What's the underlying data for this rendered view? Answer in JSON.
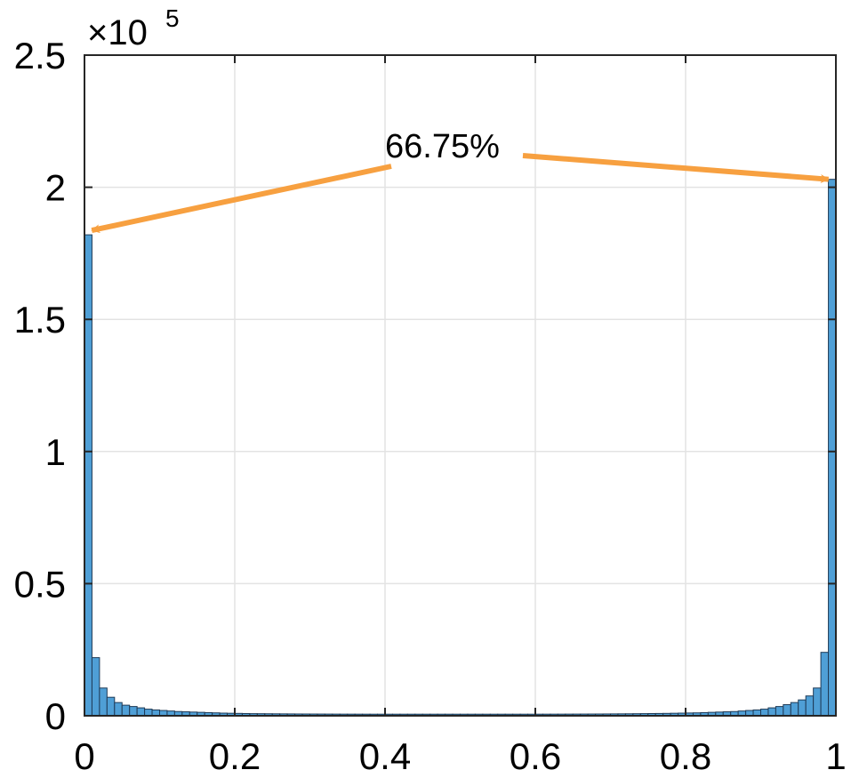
{
  "chart_data": {
    "type": "bar",
    "title": "",
    "xlabel": "",
    "ylabel": "",
    "xlim": [
      0,
      1
    ],
    "ylim": [
      0,
      250000
    ],
    "x_ticks": [
      "0",
      "0.2",
      "0.4",
      "0.6",
      "0.8",
      "1"
    ],
    "y_ticks": [
      "0",
      "0.5",
      "1",
      "1.5",
      "2",
      "2.5"
    ],
    "y_scale_prefix": "×10",
    "y_scale_exponent": "5",
    "grid": true,
    "bar_color": "#4f9fd6",
    "bar_edge_color": "#1f3b57",
    "bin_width": 0.01,
    "series": [
      {
        "values": [
          182000,
          22000,
          10500,
          7000,
          5000,
          4000,
          3500,
          3000,
          2500,
          2200,
          2000,
          1800,
          1600,
          1500,
          1400,
          1300,
          1200,
          1100,
          1000,
          950,
          900,
          850,
          800,
          780,
          760,
          740,
          720,
          700,
          680,
          670,
          660,
          650,
          640,
          630,
          620,
          615,
          610,
          605,
          600,
          600,
          600,
          600,
          600,
          600,
          600,
          600,
          600,
          600,
          600,
          600,
          600,
          600,
          600,
          600,
          600,
          600,
          600,
          600,
          600,
          600,
          605,
          610,
          615,
          620,
          630,
          640,
          650,
          660,
          670,
          690,
          710,
          730,
          750,
          780,
          810,
          840,
          870,
          900,
          950,
          1000,
          1050,
          1100,
          1200,
          1300,
          1400,
          1500,
          1600,
          1800,
          2000,
          2200,
          2500,
          3000,
          3500,
          4200,
          5000,
          6000,
          7500,
          10500,
          24000,
          203000
        ]
      }
    ],
    "annotation": {
      "text": "66.75%",
      "color": "#f7a040"
    }
  }
}
